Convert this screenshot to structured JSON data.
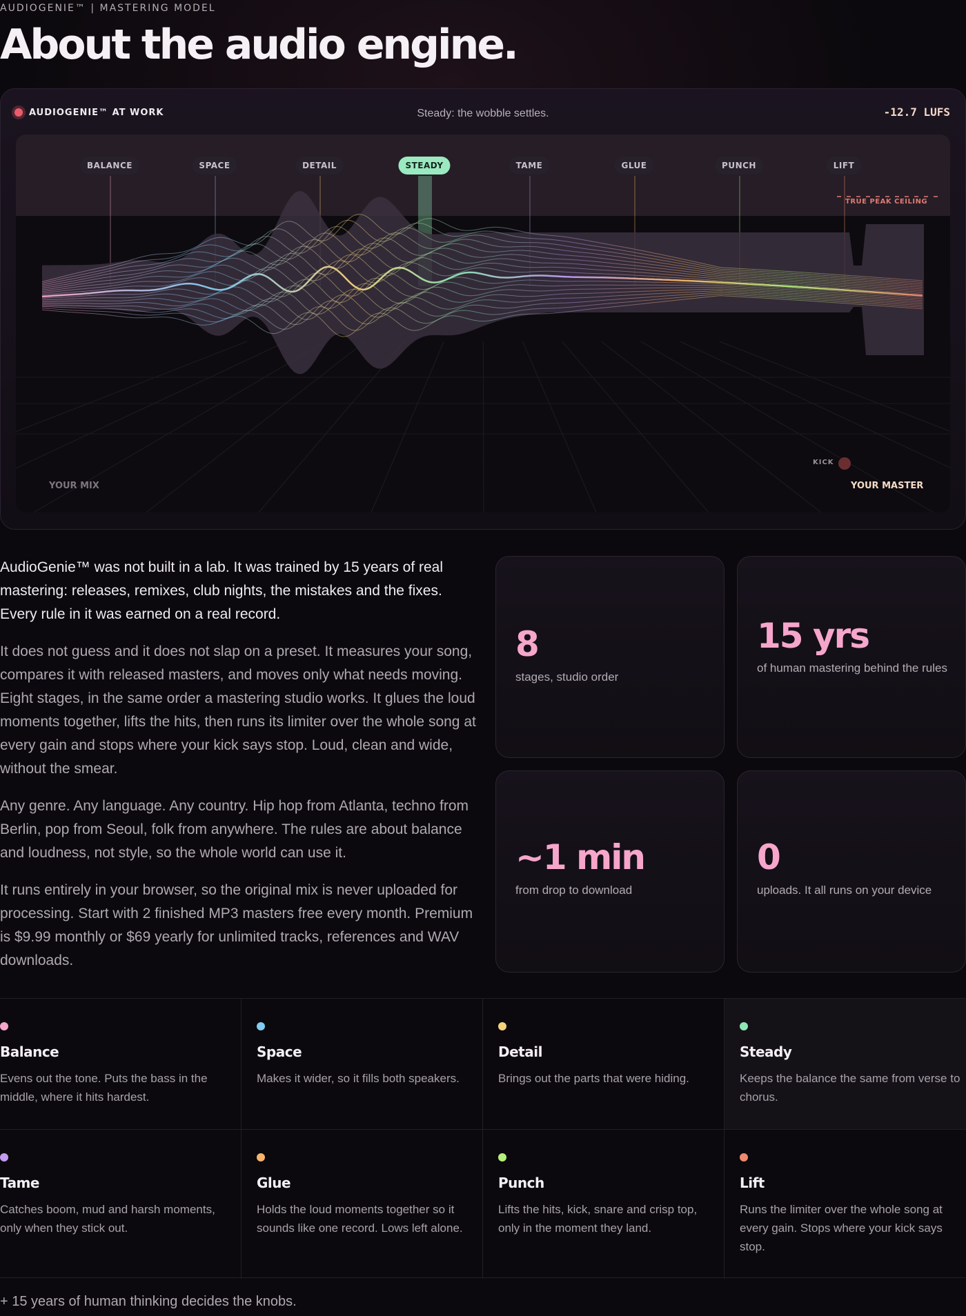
{
  "header": {
    "eyebrow": "AUDIOGENIE™ | MASTERING MODEL",
    "title": "About the audio engine."
  },
  "viz": {
    "label": "AUDIOGENIE™ AT WORK",
    "caption": "Steady: the wobble settles.",
    "meter": "-12.7 LUFS",
    "stages": [
      "BALANCE",
      "SPACE",
      "DETAIL",
      "STEADY",
      "TAME",
      "GLUE",
      "PUNCH",
      "LIFT"
    ],
    "active_stage": "STEADY",
    "ceiling_label": "TRUE PEAK CEILING",
    "kick_label": "KICK",
    "mix_label": "YOUR MIX",
    "master_label": "YOUR MASTER"
  },
  "intro": {
    "p1": "AudioGenie™ was not built in a lab. It was trained by 15 years of real mastering: releases, remixes, club nights, the mistakes and the fixes. Every rule in it was earned on a real record.",
    "p2": "It does not guess and it does not slap on a preset. It measures your song, compares it with released masters, and moves only what needs moving. Eight stages, in the same order a mastering studio works. It glues the loud moments together, lifts the hits, then runs its limiter over the whole song at every gain and stops where your kick says stop. Loud, clean and wide, without the smear.",
    "p3": "Any genre. Any language. Any country. Hip hop from Atlanta, techno from Berlin, pop from Seoul, folk from anywhere. The rules are about balance and loudness, not style, so the whole world can use it.",
    "p4": "It runs entirely in your browser, so the original mix is never uploaded for processing. Start with 2 finished MP3 masters free every month. Premium is $9.99 monthly or $69 yearly for unlimited tracks, references and WAV downloads."
  },
  "stats": [
    {
      "value": "8",
      "label": "stages, studio order"
    },
    {
      "value": "15 yrs",
      "label": "of human mastering behind the rules"
    },
    {
      "value": "~1 min",
      "label": "from drop to download"
    },
    {
      "value": "0",
      "label": "uploads. It all runs on your device"
    }
  ],
  "stages": [
    {
      "name": "Balance",
      "desc": "Evens out the tone. Puts the bass in the middle, where it hits hardest.",
      "color": "#f6a6cb"
    },
    {
      "name": "Space",
      "desc": "Makes it wider, so it fills both speakers.",
      "color": "#7fcdf2"
    },
    {
      "name": "Detail",
      "desc": "Brings out the parts that were hiding.",
      "color": "#f4d27a"
    },
    {
      "name": "Steady",
      "desc": "Keeps the balance the same from verse to chorus.",
      "color": "#8fe6b5"
    },
    {
      "name": "Tame",
      "desc": "Catches boom, mud and harsh moments, only when they stick out.",
      "color": "#c19cf0"
    },
    {
      "name": "Glue",
      "desc": "Holds the loud moments together so it sounds like one record. Lows left alone.",
      "color": "#f6b46d"
    },
    {
      "name": "Punch",
      "desc": "Lifts the hits, kick, snare and crisp top, only in the moment they land.",
      "color": "#b7ef7c"
    },
    {
      "name": "Lift",
      "desc": "Runs the limiter over the whole song at every gain. Stops where your kick says stop.",
      "color": "#ee8a6e"
    }
  ],
  "footer": {
    "note": "+ 15 years of human thinking decides the knobs."
  }
}
